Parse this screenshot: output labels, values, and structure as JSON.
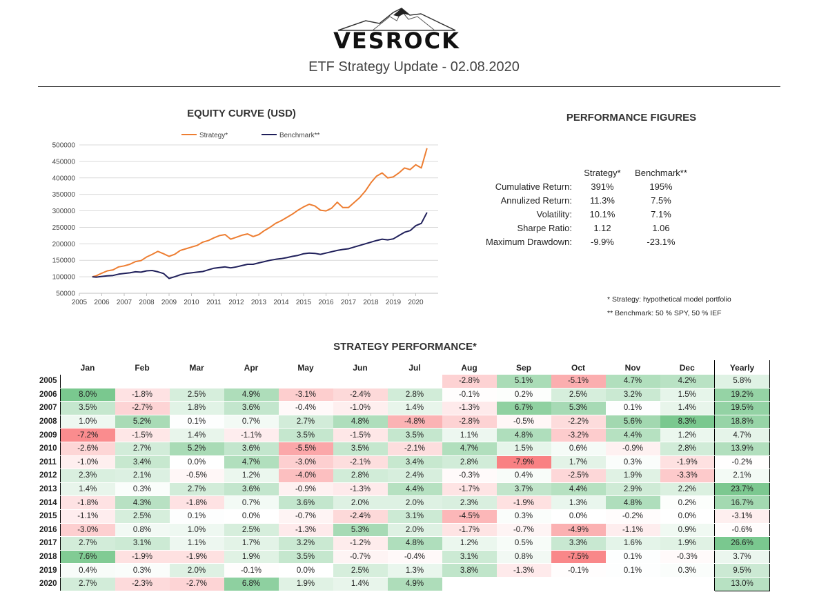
{
  "header": {
    "brand": "VESROCK",
    "subtitle": "ETF Strategy Update - 02.08.2020"
  },
  "sections": {
    "equity_title": "EQUITY CURVE (USD)",
    "perf_figures_title": "PERFORMANCE FIGURES",
    "strategy_perf_title": "STRATEGY PERFORMANCE*"
  },
  "chart_data": {
    "type": "line",
    "title": "EQUITY CURVE (USD)",
    "legend_position": "top",
    "x_ticks": [
      "2005",
      "2006",
      "2007",
      "2008",
      "2009",
      "2010",
      "2011",
      "2012",
      "2013",
      "2014",
      "2015",
      "2016",
      "2017",
      "2018",
      "2019",
      "2020"
    ],
    "y_ticks": [
      50000,
      100000,
      150000,
      200000,
      250000,
      300000,
      350000,
      400000,
      450000,
      500000
    ],
    "ylim": [
      50000,
      500000
    ],
    "xlim": [
      2005,
      2021
    ],
    "grid": "horizontal",
    "series": [
      {
        "name": "Strategy*",
        "color": "#ed7d31",
        "x": [
          2005.58,
          2005.75,
          2006.0,
          2006.25,
          2006.5,
          2006.75,
          2007.0,
          2007.25,
          2007.5,
          2007.75,
          2008.0,
          2008.25,
          2008.5,
          2008.75,
          2009.0,
          2009.25,
          2009.5,
          2009.75,
          2010.0,
          2010.25,
          2010.5,
          2010.75,
          2011.0,
          2011.25,
          2011.5,
          2011.75,
          2012.0,
          2012.25,
          2012.5,
          2012.75,
          2013.0,
          2013.25,
          2013.5,
          2013.75,
          2014.0,
          2014.25,
          2014.5,
          2014.75,
          2015.0,
          2015.25,
          2015.5,
          2015.75,
          2016.0,
          2016.25,
          2016.5,
          2016.75,
          2017.0,
          2017.25,
          2017.5,
          2017.75,
          2018.0,
          2018.25,
          2018.5,
          2018.75,
          2019.0,
          2019.25,
          2019.5,
          2019.75,
          2020.0,
          2020.25,
          2020.5
        ],
        "y": [
          100000,
          103000,
          111000,
          118000,
          121000,
          130000,
          133000,
          138000,
          146000,
          149000,
          160000,
          168000,
          177000,
          170000,
          162000,
          168000,
          180000,
          185000,
          190000,
          195000,
          205000,
          210000,
          218000,
          225000,
          228000,
          214000,
          220000,
          226000,
          230000,
          222000,
          228000,
          240000,
          250000,
          262000,
          270000,
          280000,
          290000,
          302000,
          312000,
          320000,
          315000,
          302000,
          300000,
          308000,
          326000,
          310000,
          310000,
          325000,
          340000,
          360000,
          385000,
          405000,
          415000,
          400000,
          403000,
          415000,
          430000,
          425000,
          440000,
          430000,
          490000
        ]
      },
      {
        "name": "Benchmark**",
        "color": "#1f1f5a",
        "x": [
          2005.58,
          2005.75,
          2006.0,
          2006.25,
          2006.5,
          2006.75,
          2007.0,
          2007.25,
          2007.5,
          2007.75,
          2008.0,
          2008.25,
          2008.5,
          2008.75,
          2009.0,
          2009.25,
          2009.5,
          2009.75,
          2010.0,
          2010.25,
          2010.5,
          2010.75,
          2011.0,
          2011.25,
          2011.5,
          2011.75,
          2012.0,
          2012.25,
          2012.5,
          2012.75,
          2013.0,
          2013.25,
          2013.5,
          2013.75,
          2014.0,
          2014.25,
          2014.5,
          2014.75,
          2015.0,
          2015.25,
          2015.5,
          2015.75,
          2016.0,
          2016.25,
          2016.5,
          2016.75,
          2017.0,
          2017.25,
          2017.5,
          2017.75,
          2018.0,
          2018.25,
          2018.5,
          2018.75,
          2019.0,
          2019.25,
          2019.5,
          2019.75,
          2020.0,
          2020.25,
          2020.5
        ],
        "y": [
          100000,
          99000,
          101000,
          103000,
          104000,
          108000,
          110000,
          112000,
          115000,
          114000,
          118000,
          119000,
          115000,
          110000,
          95000,
          100000,
          106000,
          110000,
          112000,
          114000,
          116000,
          121000,
          126000,
          128000,
          130000,
          127000,
          130000,
          134000,
          138000,
          138000,
          142000,
          146000,
          150000,
          153000,
          155000,
          158000,
          162000,
          165000,
          170000,
          172000,
          171000,
          168000,
          172000,
          176000,
          180000,
          183000,
          185000,
          190000,
          195000,
          200000,
          205000,
          210000,
          214000,
          212000,
          215000,
          225000,
          235000,
          240000,
          255000,
          262000,
          295000
        ]
      }
    ]
  },
  "performance_figures": {
    "col_strategy": "Strategy*",
    "col_benchmark": "Benchmark**",
    "rows": [
      {
        "label": "Cumulative Return:",
        "strategy": "391%",
        "benchmark": "195%"
      },
      {
        "label": "Annulized Return:",
        "strategy": "11.3%",
        "benchmark": "7.5%"
      },
      {
        "label": "Volatility:",
        "strategy": "10.1%",
        "benchmark": "7.1%"
      },
      {
        "label": "Sharpe Ratio:",
        "strategy": "1.12",
        "benchmark": "1.06"
      },
      {
        "label": "Maximum Drawdown:",
        "strategy": "-9.9%",
        "benchmark": "-23.1%"
      }
    ],
    "note1": "* Strategy: hypothetical model portfolio",
    "note2": "** Benchmark: 50 % SPY, 50 % IEF"
  },
  "monthly": {
    "months": [
      "Jan",
      "Feb",
      "Mar",
      "Apr",
      "May",
      "Jun",
      "Jul",
      "Aug",
      "Sep",
      "Oct",
      "Nov",
      "Dec"
    ],
    "yearly_label": "Yearly",
    "colors": {
      "positive": "#63be7b",
      "negative": "#f8696b"
    },
    "rows": [
      {
        "year": "2005",
        "m": [
          "",
          "",
          "",
          "",
          "",
          "",
          "",
          "-2.8%",
          "5.1%",
          "-5.1%",
          "4.7%",
          "4.2%"
        ],
        "y": "5.8%"
      },
      {
        "year": "2006",
        "m": [
          "8.0%",
          "-1.8%",
          "2.5%",
          "4.9%",
          "-3.1%",
          "-2.4%",
          "2.8%",
          "-0.1%",
          "0.2%",
          "2.5%",
          "3.2%",
          "1.5%"
        ],
        "y": "19.2%"
      },
      {
        "year": "2007",
        "m": [
          "3.5%",
          "-2.7%",
          "1.8%",
          "3.6%",
          "-0.4%",
          "-1.0%",
          "1.4%",
          "-1.3%",
          "6.7%",
          "5.3%",
          "0.1%",
          "1.4%"
        ],
        "y": "19.5%"
      },
      {
        "year": "2008",
        "m": [
          "1.0%",
          "5.2%",
          "0.1%",
          "0.7%",
          "2.7%",
          "4.8%",
          "-4.8%",
          "-2.8%",
          "-0.5%",
          "-2.2%",
          "5.6%",
          "8.3%"
        ],
        "y": "18.8%"
      },
      {
        "year": "2009",
        "m": [
          "-7.2%",
          "-1.5%",
          "1.4%",
          "-1.1%",
          "3.5%",
          "-1.5%",
          "3.5%",
          "1.1%",
          "4.8%",
          "-3.2%",
          "4.4%",
          "1.2%"
        ],
        "y": "4.7%"
      },
      {
        "year": "2010",
        "m": [
          "-2.6%",
          "2.7%",
          "5.2%",
          "3.6%",
          "-5.5%",
          "3.5%",
          "-2.1%",
          "4.7%",
          "1.5%",
          "0.6%",
          "-0.9%",
          "2.8%"
        ],
        "y": "13.9%"
      },
      {
        "year": "2011",
        "m": [
          "-1.0%",
          "3.4%",
          "0.0%",
          "4.7%",
          "-3.0%",
          "-2.1%",
          "3.4%",
          "2.8%",
          "-7.9%",
          "1.7%",
          "0.3%",
          "-1.9%"
        ],
        "y": "-0.2%"
      },
      {
        "year": "2012",
        "m": [
          "2.3%",
          "2.1%",
          "-0.5%",
          "1.2%",
          "-4.0%",
          "2.8%",
          "2.4%",
          "-0.3%",
          "0.4%",
          "-2.5%",
          "1.9%",
          "-3.3%"
        ],
        "y": "2.1%"
      },
      {
        "year": "2013",
        "m": [
          "1.4%",
          "0.3%",
          "2.7%",
          "3.6%",
          "-0.9%",
          "-1.3%",
          "4.4%",
          "-1.7%",
          "3.7%",
          "4.4%",
          "2.9%",
          "2.2%"
        ],
        "y": "23.7%"
      },
      {
        "year": "2014",
        "m": [
          "-1.8%",
          "4.3%",
          "-1.8%",
          "0.7%",
          "3.6%",
          "2.0%",
          "2.0%",
          "2.3%",
          "-1.9%",
          "1.3%",
          "4.8%",
          "0.2%"
        ],
        "y": "16.7%"
      },
      {
        "year": "2015",
        "m": [
          "-1.1%",
          "2.5%",
          "0.1%",
          "0.0%",
          "-0.7%",
          "-2.4%",
          "3.1%",
          "-4.5%",
          "0.3%",
          "0.0%",
          "-0.2%",
          "0.0%"
        ],
        "y": "-3.1%"
      },
      {
        "year": "2016",
        "m": [
          "-3.0%",
          "0.8%",
          "1.0%",
          "2.5%",
          "-1.3%",
          "5.3%",
          "2.0%",
          "-1.7%",
          "-0.7%",
          "-4.9%",
          "-1.1%",
          "0.9%"
        ],
        "y": "-0.6%"
      },
      {
        "year": "2017",
        "m": [
          "2.7%",
          "3.1%",
          "1.1%",
          "1.7%",
          "3.2%",
          "-1.2%",
          "4.8%",
          "1.2%",
          "0.5%",
          "3.3%",
          "1.6%",
          "1.9%"
        ],
        "y": "26.6%"
      },
      {
        "year": "2018",
        "m": [
          "7.6%",
          "-1.9%",
          "-1.9%",
          "1.9%",
          "3.5%",
          "-0.7%",
          "-0.4%",
          "3.1%",
          "0.8%",
          "-7.5%",
          "0.1%",
          "-0.3%"
        ],
        "y": "3.7%"
      },
      {
        "year": "2019",
        "m": [
          "0.4%",
          "0.3%",
          "2.0%",
          "-0.1%",
          "0.0%",
          "2.5%",
          "1.3%",
          "3.8%",
          "-1.3%",
          "-0.1%",
          "0.1%",
          "0.3%"
        ],
        "y": "9.5%"
      },
      {
        "year": "2020",
        "m": [
          "2.7%",
          "-2.3%",
          "-2.7%",
          "6.8%",
          "1.9%",
          "1.4%",
          "4.9%",
          "",
          "",
          "",
          "",
          ""
        ],
        "y": "13.0%"
      }
    ]
  }
}
